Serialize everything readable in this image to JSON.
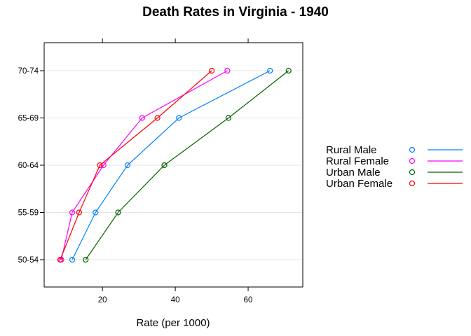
{
  "chart_data": {
    "type": "line",
    "title": "Death Rates in Virginia - 1940",
    "xlabel": "Rate (per 1000)",
    "ylabel": "",
    "categories": [
      "50-54",
      "55-59",
      "60-64",
      "65-69",
      "70-74"
    ],
    "xlim": [
      4,
      75
    ],
    "x_ticks": [
      20,
      40,
      60
    ],
    "grid": "horizontal",
    "legend_placement": "right",
    "series": [
      {
        "name": "Rural Male",
        "color": "#0080ff",
        "values": [
          11.7,
          18.1,
          26.9,
          41.0,
          66.0
        ]
      },
      {
        "name": "Rural Female",
        "color": "#ff00ff",
        "values": [
          8.7,
          11.7,
          20.3,
          30.9,
          54.3
        ]
      },
      {
        "name": "Urban Male",
        "color": "#006400",
        "values": [
          15.4,
          24.3,
          37.0,
          54.6,
          71.1
        ]
      },
      {
        "name": "Urban Female",
        "color": "#ff0000",
        "values": [
          8.4,
          13.6,
          19.3,
          35.1,
          50.0
        ]
      }
    ]
  }
}
